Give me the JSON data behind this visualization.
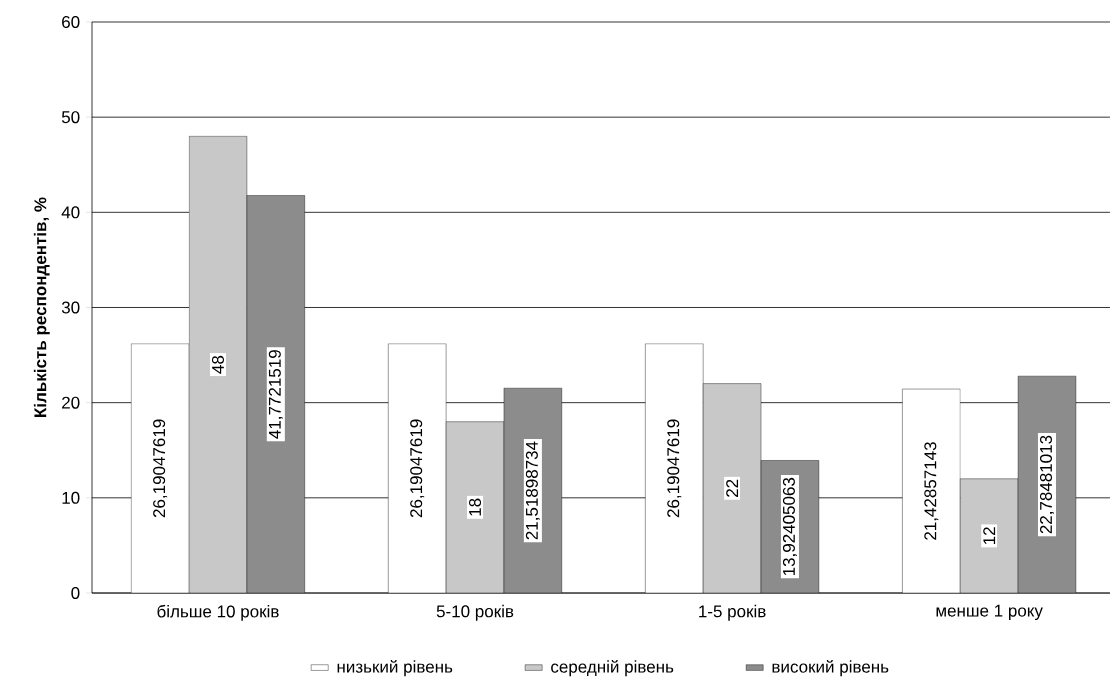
{
  "chart_data": {
    "type": "bar",
    "ylabel": "Кількість респондентів, %",
    "categories": [
      "більше 10 років",
      "5-10 років",
      "1-5 років",
      "менше 1 року"
    ],
    "series": [
      {
        "name": "низький рівень",
        "color": "#ffffff",
        "values": [
          26.19047619,
          26.19047619,
          26.19047619,
          21.42857143
        ],
        "value_labels": [
          "26,19047619",
          "26,19047619",
          "26,19047619",
          "21,42857143"
        ]
      },
      {
        "name": "середній рівень",
        "color": "#c8c8c8",
        "values": [
          48,
          18,
          22,
          12
        ],
        "value_labels": [
          "48",
          "18",
          "22",
          "12"
        ]
      },
      {
        "name": "високий рівень",
        "color": "#8c8c8c",
        "values": [
          41.7721519,
          21.51898734,
          13.92405063,
          22.78481013
        ],
        "value_labels": [
          "41,7721519",
          "21,51898734",
          "13,92405063",
          "22,78481013"
        ]
      }
    ],
    "ylim": [
      0,
      60
    ],
    "yticks": [
      0,
      10,
      20,
      30,
      40,
      50,
      60
    ],
    "grid": "y",
    "legend": "bottom"
  }
}
